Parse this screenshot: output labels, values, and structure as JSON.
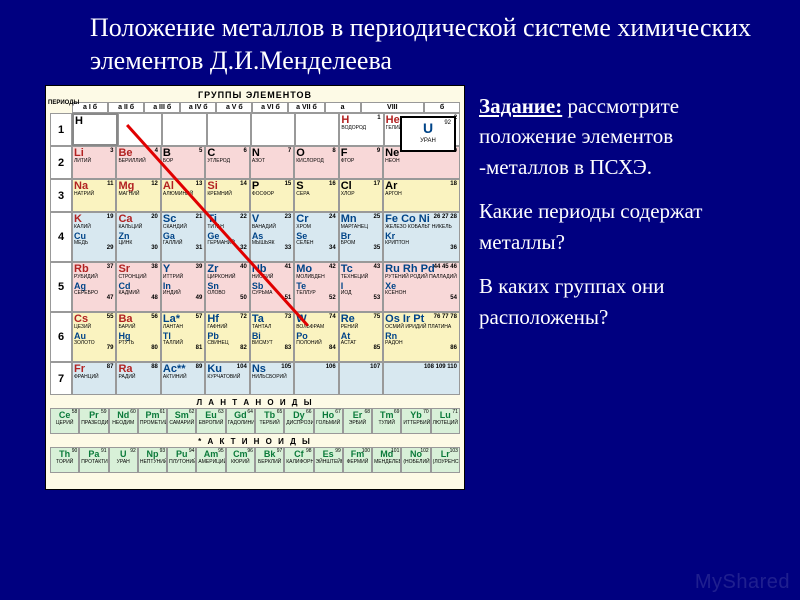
{
  "title": "Положение металлов в периодической системе химических элементов Д.И.Менделеева",
  "task": {
    "label": "Задание:",
    "p1": "рассмотрите положение элементов -металлов в ПСХЭ.",
    "p2": "Какие периоды содержат металлы?",
    "p3": "В каких группах они расположены?"
  },
  "watermark": "MyShared",
  "table_header": "ГРУППЫ ЭЛЕМЕНТОВ",
  "side_label": "ПЕРИОДЫ",
  "legend": {
    "sym": "U",
    "num": "92",
    "name": "УРАН"
  },
  "groups": [
    "а I б",
    "а II б",
    "а III б",
    "а IV б",
    "а V б",
    "а VI б",
    "а VII б",
    "а",
    "VIII",
    "б"
  ],
  "lanth_label": "Л А Н Т А Н О И Д Ы",
  "act_label": "* А К Т И Н О И Д Ы",
  "periods": [
    {
      "n": "1",
      "cls": "row-wht",
      "cells": [
        {
          "s": "H",
          "nm": "",
          "z": "",
          "c": "bk",
          "outline": true
        },
        {
          "s": "",
          "nm": "",
          "z": ""
        },
        {
          "s": "",
          "nm": "",
          "z": ""
        },
        {
          "s": "",
          "nm": "",
          "z": ""
        },
        {
          "s": "",
          "nm": "",
          "z": ""
        },
        {
          "s": "",
          "nm": "",
          "z": ""
        },
        {
          "s": "H",
          "nm": "ВОДОРОД",
          "z": "1",
          "c": "br"
        },
        {
          "s": "He",
          "nm": "ГЕЛИЙ",
          "z": "2",
          "c": "br",
          "wide": true
        }
      ]
    },
    {
      "n": "2",
      "cls": "row-pink",
      "cells": [
        {
          "s": "Li",
          "nm": "ЛИТИЙ",
          "z": "3",
          "c": "br"
        },
        {
          "s": "Be",
          "nm": "БЕРИЛЛИЙ",
          "z": "4",
          "c": "br"
        },
        {
          "s": "B",
          "nm": "БОР",
          "z": "5",
          "c": "bk"
        },
        {
          "s": "C",
          "nm": "УГЛЕРОД",
          "z": "6",
          "c": "bk"
        },
        {
          "s": "N",
          "nm": "АЗОТ",
          "z": "7",
          "c": "bk"
        },
        {
          "s": "O",
          "nm": "КИСЛОРОД",
          "z": "8",
          "c": "bk"
        },
        {
          "s": "F",
          "nm": "ФТОР",
          "z": "9",
          "c": "bk"
        },
        {
          "s": "Ne",
          "nm": "НЕОН",
          "z": "10",
          "c": "bk",
          "wide": true
        }
      ]
    },
    {
      "n": "3",
      "cls": "row-yel",
      "cells": [
        {
          "s": "Na",
          "nm": "НАТРИЙ",
          "z": "11",
          "c": "br"
        },
        {
          "s": "Mg",
          "nm": "МАГНИЙ",
          "z": "12",
          "c": "br"
        },
        {
          "s": "Al",
          "nm": "АЛЮМИНИЙ",
          "z": "13",
          "c": "br"
        },
        {
          "s": "Si",
          "nm": "КРЕМНИЙ",
          "z": "14",
          "c": "br"
        },
        {
          "s": "P",
          "nm": "ФОСФОР",
          "z": "15",
          "c": "bk"
        },
        {
          "s": "S",
          "nm": "СЕРА",
          "z": "16",
          "c": "bk"
        },
        {
          "s": "Cl",
          "nm": "ХЛОР",
          "z": "17",
          "c": "bk"
        },
        {
          "s": "Ar",
          "nm": "АРГОН",
          "z": "18",
          "c": "bk",
          "wide": true
        }
      ]
    },
    {
      "n": "4",
      "cls": "row-blue",
      "tall": true,
      "cells": [
        {
          "s": "K",
          "nm": "КАЛИЙ",
          "z": "19",
          "c": "br",
          "s2": "Cu",
          "nm2": "МЕДЬ",
          "z2": "29"
        },
        {
          "s": "Ca",
          "nm": "КАЛЬЦИЙ",
          "z": "20",
          "c": "br",
          "s2": "Zn",
          "nm2": "ЦИНК",
          "z2": "30"
        },
        {
          "s": "Sc",
          "nm": "СКАНДИЙ",
          "z": "21",
          "c": "bb",
          "s2": "Ga",
          "nm2": "ГАЛЛИЙ",
          "z2": "31"
        },
        {
          "s": "Ti",
          "nm": "ТИТАН",
          "z": "22",
          "c": "bb",
          "s2": "Ge",
          "nm2": "ГЕРМАНИЙ",
          "z2": "32"
        },
        {
          "s": "V",
          "nm": "ВАНАДИЙ",
          "z": "23",
          "c": "bb",
          "s2": "As",
          "nm2": "МЫШЬЯК",
          "z2": "33"
        },
        {
          "s": "Cr",
          "nm": "ХРОМ",
          "z": "24",
          "c": "bb",
          "s2": "Se",
          "nm2": "СЕЛЕН",
          "z2": "34"
        },
        {
          "s": "Mn",
          "nm": "МАРГАНЕЦ",
          "z": "25",
          "c": "bb",
          "s2": "Br",
          "nm2": "БРОМ",
          "z2": "35"
        },
        {
          "s": "Fe Co Ni",
          "nm": "ЖЕЛЕЗО КОБАЛЬТ НИКЕЛЬ",
          "z": "26 27 28",
          "c": "bb",
          "wide": true,
          "s2": "Kr",
          "nm2": "КРИПТОН",
          "z2": "36"
        }
      ]
    },
    {
      "n": "5",
      "cls": "row-pink",
      "tall": true,
      "cells": [
        {
          "s": "Rb",
          "nm": "РУБИДИЙ",
          "z": "37",
          "c": "br",
          "s2": "Ag",
          "nm2": "СЕРЕБРО",
          "z2": "47"
        },
        {
          "s": "Sr",
          "nm": "СТРОНЦИЙ",
          "z": "38",
          "c": "br",
          "s2": "Cd",
          "nm2": "КАДМИЙ",
          "z2": "48"
        },
        {
          "s": "Y",
          "nm": "ИТТРИЙ",
          "z": "39",
          "c": "bb",
          "s2": "In",
          "nm2": "ИНДИЙ",
          "z2": "49"
        },
        {
          "s": "Zr",
          "nm": "ЦИРКОНИЙ",
          "z": "40",
          "c": "bb",
          "s2": "Sn",
          "nm2": "ОЛОВО",
          "z2": "50"
        },
        {
          "s": "Nb",
          "nm": "НИОБИЙ",
          "z": "41",
          "c": "bb",
          "s2": "Sb",
          "nm2": "СУРЬМА",
          "z2": "51"
        },
        {
          "s": "Mo",
          "nm": "МОЛИБДЕН",
          "z": "42",
          "c": "bb",
          "s2": "Te",
          "nm2": "ТЕЛЛУР",
          "z2": "52"
        },
        {
          "s": "Tc",
          "nm": "ТЕХНЕЦИЙ",
          "z": "43",
          "c": "bb",
          "s2": "I",
          "nm2": "ИОД",
          "z2": "53"
        },
        {
          "s": "Ru Rh Pd",
          "nm": "РУТЕНИЙ РОДИЙ ПАЛЛАДИЙ",
          "z": "44 45 46",
          "c": "bb",
          "wide": true,
          "s2": "Xe",
          "nm2": "КСЕНОН",
          "z2": "54"
        }
      ]
    },
    {
      "n": "6",
      "cls": "row-yel",
      "tall": true,
      "cells": [
        {
          "s": "Cs",
          "nm": "ЦЕЗИЙ",
          "z": "55",
          "c": "br",
          "s2": "Au",
          "nm2": "ЗОЛОТО",
          "z2": "79"
        },
        {
          "s": "Ba",
          "nm": "БАРИЙ",
          "z": "56",
          "c": "br",
          "s2": "Hg",
          "nm2": "РТУТЬ",
          "z2": "80"
        },
        {
          "s": "La*",
          "nm": "ЛАНТАН",
          "z": "57",
          "c": "bb",
          "s2": "Tl",
          "nm2": "ТАЛЛИЙ",
          "z2": "81"
        },
        {
          "s": "Hf",
          "nm": "ГАФНИЙ",
          "z": "72",
          "c": "bb",
          "s2": "Pb",
          "nm2": "СВИНЕЦ",
          "z2": "82"
        },
        {
          "s": "Ta",
          "nm": "ТАНТАЛ",
          "z": "73",
          "c": "bb",
          "s2": "Bi",
          "nm2": "ВИСМУТ",
          "z2": "83"
        },
        {
          "s": "W",
          "nm": "ВОЛЬФРАМ",
          "z": "74",
          "c": "bb",
          "s2": "Po",
          "nm2": "ПОЛОНИЙ",
          "z2": "84"
        },
        {
          "s": "Re",
          "nm": "РЕНИЙ",
          "z": "75",
          "c": "bb",
          "s2": "At",
          "nm2": "АСТАТ",
          "z2": "85"
        },
        {
          "s": "Os Ir Pt",
          "nm": "ОСМИЙ ИРИДИЙ ПЛАТИНА",
          "z": "76 77 78",
          "c": "bb",
          "wide": true,
          "s2": "Rn",
          "nm2": "РАДОН",
          "z2": "86"
        }
      ]
    },
    {
      "n": "7",
      "cls": "row-blue",
      "cells": [
        {
          "s": "Fr",
          "nm": "ФРАНЦИЙ",
          "z": "87",
          "c": "br"
        },
        {
          "s": "Ra",
          "nm": "РАДИЙ",
          "z": "88",
          "c": "br"
        },
        {
          "s": "Ac**",
          "nm": "АКТИНИЙ",
          "z": "89",
          "c": "bb"
        },
        {
          "s": "Ku",
          "nm": "КУРЧАТОВИЙ",
          "z": "104",
          "c": "bb"
        },
        {
          "s": "Ns",
          "nm": "НИЛЬСБОРИЙ",
          "z": "105",
          "c": "bb"
        },
        {
          "s": "",
          "nm": "",
          "z": "106"
        },
        {
          "s": "",
          "nm": "",
          "z": "107"
        },
        {
          "s": "",
          "nm": "",
          "z": "108 109 110",
          "wide": true
        }
      ]
    }
  ],
  "lanthanides": [
    {
      "s": "Ce",
      "z": "58",
      "nm": "ЦЕРИЙ"
    },
    {
      "s": "Pr",
      "z": "59",
      "nm": "ПРАЗЕОДИМ"
    },
    {
      "s": "Nd",
      "z": "60",
      "nm": "НЕОДИМ"
    },
    {
      "s": "Pm",
      "z": "61",
      "nm": "ПРОМЕТИЙ"
    },
    {
      "s": "Sm",
      "z": "62",
      "nm": "САМАРИЙ"
    },
    {
      "s": "Eu",
      "z": "63",
      "nm": "ЕВРОПИЙ"
    },
    {
      "s": "Gd",
      "z": "64",
      "nm": "ГАДОЛИНИЙ"
    },
    {
      "s": "Tb",
      "z": "65",
      "nm": "ТЕРБИЙ"
    },
    {
      "s": "Dy",
      "z": "66",
      "nm": "ДИСПРОЗИЙ"
    },
    {
      "s": "Ho",
      "z": "67",
      "nm": "ГОЛЬМИЙ"
    },
    {
      "s": "Er",
      "z": "68",
      "nm": "ЭРБИЙ"
    },
    {
      "s": "Tm",
      "z": "69",
      "nm": "ТУЛИЙ"
    },
    {
      "s": "Yb",
      "z": "70",
      "nm": "ИТТЕРБИЙ"
    },
    {
      "s": "Lu",
      "z": "71",
      "nm": "ЛЮТЕЦИЙ"
    }
  ],
  "actinides": [
    {
      "s": "Th",
      "z": "90",
      "nm": "ТОРИЙ"
    },
    {
      "s": "Pa",
      "z": "91",
      "nm": "ПРОТАКТИНИЙ"
    },
    {
      "s": "U",
      "z": "92",
      "nm": "УРАН"
    },
    {
      "s": "Np",
      "z": "93",
      "nm": "НЕПТУНИЙ"
    },
    {
      "s": "Pu",
      "z": "94",
      "nm": "ПЛУТОНИЙ"
    },
    {
      "s": "Am",
      "z": "95",
      "nm": "АМЕРИЦИЙ"
    },
    {
      "s": "Cm",
      "z": "96",
      "nm": "КЮРИЙ"
    },
    {
      "s": "Bk",
      "z": "97",
      "nm": "БЕРКЛИЙ"
    },
    {
      "s": "Cf",
      "z": "98",
      "nm": "КАЛИФОРНИЙ"
    },
    {
      "s": "Es",
      "z": "99",
      "nm": "ЭЙНШТЕЙНИЙ"
    },
    {
      "s": "Fm",
      "z": "100",
      "nm": "ФЕРМИЙ"
    },
    {
      "s": "Md",
      "z": "101",
      "nm": "МЕНДЕЛЕВИЙ"
    },
    {
      "s": "No",
      "z": "102",
      "nm": "(НОБЕЛИЙ)"
    },
    {
      "s": "Lr",
      "z": "103",
      "nm": "(ЛОУРЕНСИЙ)"
    }
  ]
}
